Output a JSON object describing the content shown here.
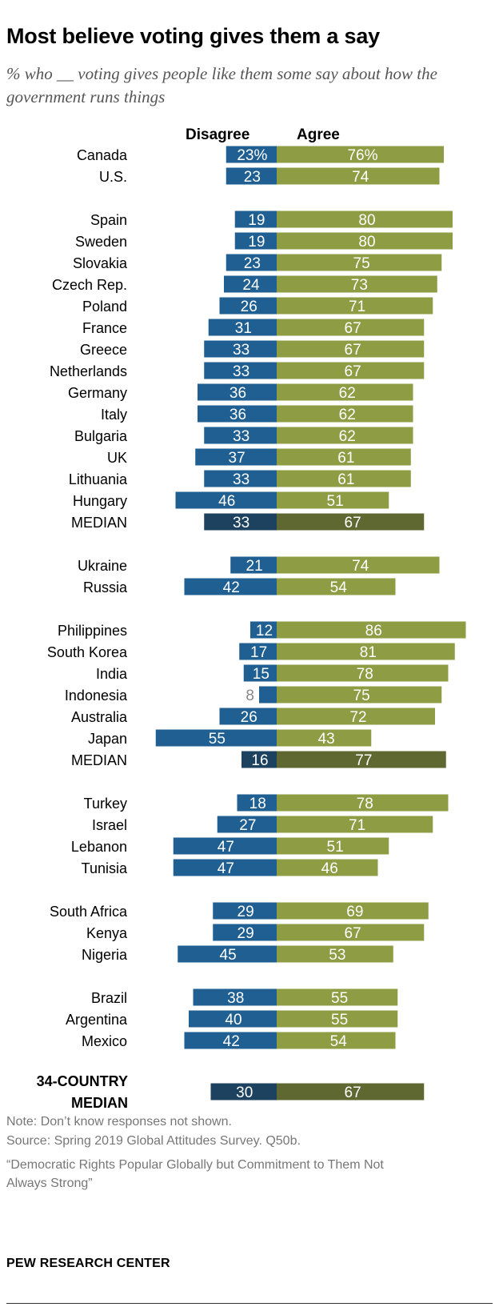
{
  "title": "Most believe voting gives them a say",
  "subtitle": "% who __ voting gives people like them some say about how the government runs things",
  "colors": {
    "disagree": "#1f5f91",
    "disagree_median": "#1c4260",
    "agree": "#8e9c44",
    "agree_median": "#5e6830",
    "label_light": "#ffffff",
    "label_outside": "#888888"
  },
  "chart_data": {
    "type": "bar",
    "orientation": "horizontal-diverging",
    "title": "Most believe voting gives them a say",
    "subtitle": "% who __ voting gives people like them some say about how the government runs things",
    "series_names": [
      "Disagree",
      "Agree"
    ],
    "groups": [
      {
        "rows": [
          {
            "label": "Canada",
            "disagree": 23,
            "agree": 76,
            "disagree_text": "23%",
            "agree_text": "76%"
          },
          {
            "label": "U.S.",
            "disagree": 23,
            "agree": 74,
            "disagree_text": "23",
            "agree_text": "74"
          }
        ]
      },
      {
        "rows": [
          {
            "label": "Spain",
            "disagree": 19,
            "agree": 80,
            "disagree_text": "19",
            "agree_text": "80"
          },
          {
            "label": "Sweden",
            "disagree": 19,
            "agree": 80,
            "disagree_text": "19",
            "agree_text": "80"
          },
          {
            "label": "Slovakia",
            "disagree": 23,
            "agree": 75,
            "disagree_text": "23",
            "agree_text": "75"
          },
          {
            "label": "Czech Rep.",
            "disagree": 24,
            "agree": 73,
            "disagree_text": "24",
            "agree_text": "73"
          },
          {
            "label": "Poland",
            "disagree": 26,
            "agree": 71,
            "disagree_text": "26",
            "agree_text": "71"
          },
          {
            "label": "France",
            "disagree": 31,
            "agree": 67,
            "disagree_text": "31",
            "agree_text": "67"
          },
          {
            "label": "Greece",
            "disagree": 33,
            "agree": 67,
            "disagree_text": "33",
            "agree_text": "67"
          },
          {
            "label": "Netherlands",
            "disagree": 33,
            "agree": 67,
            "disagree_text": "33",
            "agree_text": "67"
          },
          {
            "label": "Germany",
            "disagree": 36,
            "agree": 62,
            "disagree_text": "36",
            "agree_text": "62"
          },
          {
            "label": "Italy",
            "disagree": 36,
            "agree": 62,
            "disagree_text": "36",
            "agree_text": "62"
          },
          {
            "label": "Bulgaria",
            "disagree": 33,
            "agree": 62,
            "disagree_text": "33",
            "agree_text": "62"
          },
          {
            "label": "UK",
            "disagree": 37,
            "agree": 61,
            "disagree_text": "37",
            "agree_text": "61"
          },
          {
            "label": "Lithuania",
            "disagree": 33,
            "agree": 61,
            "disagree_text": "33",
            "agree_text": "61"
          },
          {
            "label": "Hungary",
            "disagree": 46,
            "agree": 51,
            "disagree_text": "46",
            "agree_text": "51"
          },
          {
            "label": "MEDIAN",
            "disagree": 33,
            "agree": 67,
            "disagree_text": "33",
            "agree_text": "67",
            "median": true
          }
        ]
      },
      {
        "rows": [
          {
            "label": "Ukraine",
            "disagree": 21,
            "agree": 74,
            "disagree_text": "21",
            "agree_text": "74"
          },
          {
            "label": "Russia",
            "disagree": 42,
            "agree": 54,
            "disagree_text": "42",
            "agree_text": "54"
          }
        ]
      },
      {
        "rows": [
          {
            "label": "Philippines",
            "disagree": 12,
            "agree": 86,
            "disagree_text": "12",
            "agree_text": "86"
          },
          {
            "label": "South Korea",
            "disagree": 17,
            "agree": 81,
            "disagree_text": "17",
            "agree_text": "81"
          },
          {
            "label": "India",
            "disagree": 15,
            "agree": 78,
            "disagree_text": "15",
            "agree_text": "78"
          },
          {
            "label": "Indonesia",
            "disagree": 8,
            "agree": 75,
            "disagree_text": "8",
            "agree_text": "75"
          },
          {
            "label": "Australia",
            "disagree": 26,
            "agree": 72,
            "disagree_text": "26",
            "agree_text": "72"
          },
          {
            "label": "Japan",
            "disagree": 55,
            "agree": 43,
            "disagree_text": "55",
            "agree_text": "43"
          },
          {
            "label": "MEDIAN",
            "disagree": 16,
            "agree": 77,
            "disagree_text": "16",
            "agree_text": "77",
            "median": true
          }
        ]
      },
      {
        "rows": [
          {
            "label": "Turkey",
            "disagree": 18,
            "agree": 78,
            "disagree_text": "18",
            "agree_text": "78"
          },
          {
            "label": "Israel",
            "disagree": 27,
            "agree": 71,
            "disagree_text": "27",
            "agree_text": "71"
          },
          {
            "label": "Lebanon",
            "disagree": 47,
            "agree": 51,
            "disagree_text": "47",
            "agree_text": "51"
          },
          {
            "label": "Tunisia",
            "disagree": 47,
            "agree": 46,
            "disagree_text": "47",
            "agree_text": "46"
          }
        ]
      },
      {
        "rows": [
          {
            "label": "South Africa",
            "disagree": 29,
            "agree": 69,
            "disagree_text": "29",
            "agree_text": "69"
          },
          {
            "label": "Kenya",
            "disagree": 29,
            "agree": 67,
            "disagree_text": "29",
            "agree_text": "67"
          },
          {
            "label": "Nigeria",
            "disagree": 45,
            "agree": 53,
            "disagree_text": "45",
            "agree_text": "53"
          }
        ]
      },
      {
        "rows": [
          {
            "label": "Brazil",
            "disagree": 38,
            "agree": 55,
            "disagree_text": "38",
            "agree_text": "55"
          },
          {
            "label": "Argentina",
            "disagree": 40,
            "agree": 55,
            "disagree_text": "40",
            "agree_text": "55"
          },
          {
            "label": "Mexico",
            "disagree": 42,
            "agree": 54,
            "disagree_text": "42",
            "agree_text": "54"
          }
        ]
      },
      {
        "rows": [
          {
            "label": "34-COUNTRY MEDIAN",
            "label_lines": [
              "34-COUNTRY",
              "MEDIAN"
            ],
            "disagree": 30,
            "agree": 67,
            "disagree_text": "30",
            "agree_text": "67",
            "median": true,
            "bold": true
          }
        ]
      }
    ]
  },
  "footer": {
    "note": "Note: Don’t know responses not shown.",
    "source": "Source: Spring 2019 Global Attitudes Survey. Q50b.",
    "report_line1": "“Democratic Rights Popular Globally but Commitment to Them Not",
    "report_line2": "Always Strong”",
    "brand": "PEW RESEARCH CENTER"
  }
}
